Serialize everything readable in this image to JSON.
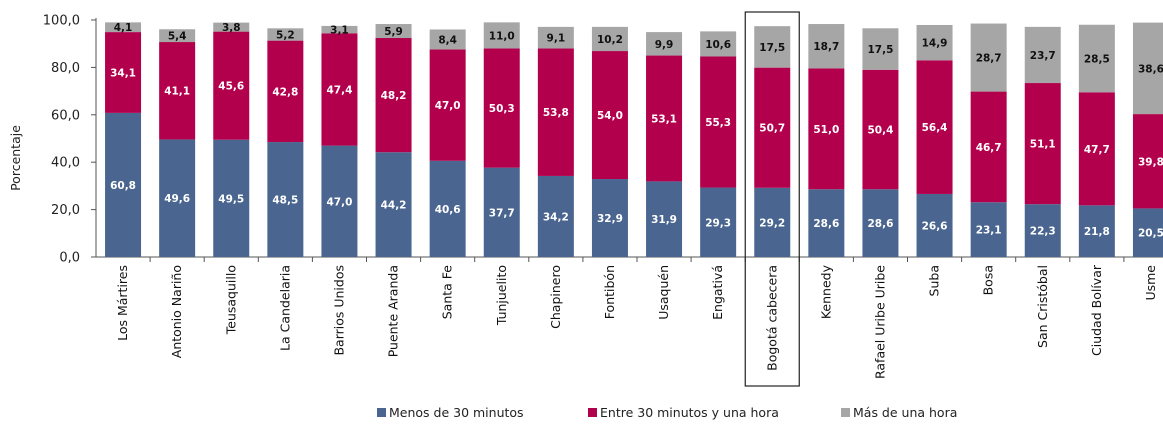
{
  "chart_data": {
    "type": "bar",
    "stacked": true,
    "ylabel": "Porcentaje",
    "ylim": [
      0,
      100
    ],
    "yticks": [
      "0,0",
      "20,0",
      "40,0",
      "60,0",
      "80,0",
      "100,0"
    ],
    "highlighted_category": "Bogotá cabecera",
    "legend_position": "bottom",
    "categories": [
      "Los Mártires",
      "Antonio Nariño",
      "Teusaquillo",
      "La Candelaria",
      "Barrios Unidos",
      "Puente Aranda",
      "Santa Fe",
      "Tunjuelito",
      "Chapinero",
      "Fontibón",
      "Usaquén",
      "Engativá",
      "Bogotá cabecera",
      "Kennedy",
      "Rafael Uribe Uribe",
      "Suba",
      "Bosa",
      "San Cristóbal",
      "Ciudad Bolívar",
      "Usme"
    ],
    "series": [
      {
        "name": "Menos de 30 minutos",
        "color": "#4a6690",
        "label_color": "#ffffff",
        "values": [
          60.8,
          49.6,
          49.5,
          48.5,
          47.0,
          44.2,
          40.6,
          37.7,
          34.2,
          32.9,
          31.9,
          29.3,
          29.2,
          28.6,
          28.6,
          26.6,
          23.1,
          22.3,
          21.8,
          20.5
        ],
        "labels": [
          "60,8",
          "49,6",
          "49,5",
          "48,5",
          "47,0",
          "44,2",
          "40,6",
          "37,7",
          "34,2",
          "32,9",
          "31,9",
          "29,3",
          "29,2",
          "28,6",
          "28,6",
          "26,6",
          "23,1",
          "22,3",
          "21,8",
          "20,5"
        ]
      },
      {
        "name": "Entre 30 minutos y una hora",
        "color": "#b3004d",
        "label_color": "#ffffff",
        "values": [
          34.1,
          41.1,
          45.6,
          42.8,
          47.4,
          48.2,
          47.0,
          50.3,
          53.8,
          54.0,
          53.1,
          55.3,
          50.7,
          51.0,
          50.4,
          56.4,
          46.7,
          51.1,
          47.7,
          39.8
        ],
        "labels": [
          "34,1",
          "41,1",
          "45,6",
          "42,8",
          "47,4",
          "48,2",
          "47,0",
          "50,3",
          "53,8",
          "54,0",
          "53,1",
          "55,3",
          "50,7",
          "51,0",
          "50,4",
          "56,4",
          "46,7",
          "51,1",
          "47,7",
          "39,8"
        ]
      },
      {
        "name": "Más de una hora",
        "color": "#a6a6a6",
        "label_color": "#111111",
        "values": [
          4.1,
          5.4,
          3.8,
          5.2,
          3.1,
          5.9,
          8.4,
          11.0,
          9.1,
          10.2,
          9.9,
          10.6,
          17.5,
          18.7,
          17.5,
          14.9,
          28.7,
          23.7,
          28.5,
          38.6
        ],
        "labels": [
          "4,1",
          "5,4",
          "3,8",
          "5,2",
          "3,1",
          "5,9",
          "8,4",
          "11,0",
          "9,1",
          "10,2",
          "9,9",
          "10,6",
          "17,5",
          "18,7",
          "17,5",
          "14,9",
          "28,7",
          "23,7",
          "28,5",
          "38,6"
        ]
      }
    ]
  }
}
